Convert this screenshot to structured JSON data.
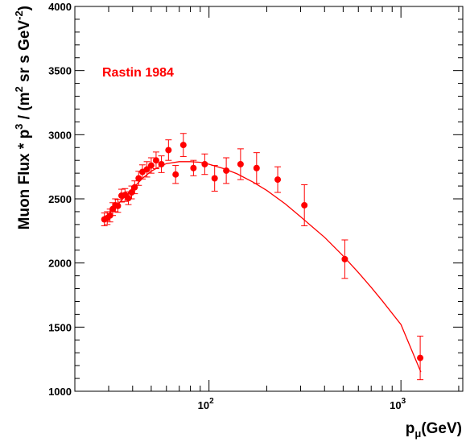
{
  "chart_data": {
    "type": "scatter",
    "title": "",
    "annotation": "Rastin 1984",
    "xlabel": {
      "base": "p",
      "sub": "μ",
      "rest": "(GeV)"
    },
    "ylabel": {
      "part1": "Muon Flux * p",
      "sup1": "3",
      "part2": " / (m",
      "sup2": "2",
      "part3": " sr s GeV",
      "sup3": "-2",
      "part4": ")"
    },
    "x_scale": "log",
    "xlim": [
      20,
      2100
    ],
    "ylim": [
      1000,
      4000
    ],
    "y_ticks": [
      1000,
      1500,
      2000,
      2500,
      3000,
      3500,
      4000
    ],
    "x_tick_labels": [
      {
        "value": 100,
        "base": "10",
        "exp": "2"
      },
      {
        "value": 1000,
        "base": "10",
        "exp": "3"
      }
    ],
    "colors": {
      "data": "#ff0000",
      "axes": "#000000"
    },
    "series": [
      {
        "name": "Rastin 1984",
        "kind": "points_with_errors",
        "points": [
          {
            "x": 28.5,
            "y": 2340,
            "err": 50
          },
          {
            "x": 29.5,
            "y": 2350,
            "err": 50
          },
          {
            "x": 30.5,
            "y": 2370,
            "err": 50
          },
          {
            "x": 31.5,
            "y": 2420,
            "err": 50
          },
          {
            "x": 32.5,
            "y": 2450,
            "err": 50
          },
          {
            "x": 33.5,
            "y": 2445,
            "err": 50
          },
          {
            "x": 35,
            "y": 2525,
            "err": 50
          },
          {
            "x": 36.5,
            "y": 2530,
            "err": 50
          },
          {
            "x": 38,
            "y": 2505,
            "err": 50
          },
          {
            "x": 39.5,
            "y": 2550,
            "err": 50
          },
          {
            "x": 41,
            "y": 2590,
            "err": 50
          },
          {
            "x": 43,
            "y": 2660,
            "err": 55
          },
          {
            "x": 45,
            "y": 2710,
            "err": 55
          },
          {
            "x": 47.5,
            "y": 2730,
            "err": 60
          },
          {
            "x": 50,
            "y": 2760,
            "err": 60
          },
          {
            "x": 53,
            "y": 2800,
            "err": 65
          },
          {
            "x": 56.5,
            "y": 2770,
            "err": 65
          },
          {
            "x": 61.5,
            "y": 2880,
            "err": 80
          },
          {
            "x": 67,
            "y": 2690,
            "err": 70
          },
          {
            "x": 73.5,
            "y": 2920,
            "err": 90
          },
          {
            "x": 83,
            "y": 2740,
            "err": 60
          },
          {
            "x": 95,
            "y": 2770,
            "err": 80
          },
          {
            "x": 107,
            "y": 2660,
            "err": 100
          },
          {
            "x": 123,
            "y": 2720,
            "err": 100
          },
          {
            "x": 146,
            "y": 2770,
            "err": 120
          },
          {
            "x": 177,
            "y": 2740,
            "err": 120
          },
          {
            "x": 228,
            "y": 2650,
            "err": 100
          },
          {
            "x": 314,
            "y": 2450,
            "err": 160
          },
          {
            "x": 510,
            "y": 2030,
            "err": 150
          },
          {
            "x": 1260,
            "y": 1260,
            "err": 170
          }
        ]
      },
      {
        "name": "fit",
        "kind": "line",
        "points": [
          {
            "x": 28,
            "y": 2320
          },
          {
            "x": 30,
            "y": 2380
          },
          {
            "x": 33,
            "y": 2445
          },
          {
            "x": 36,
            "y": 2510
          },
          {
            "x": 40,
            "y": 2580
          },
          {
            "x": 45,
            "y": 2660
          },
          {
            "x": 50,
            "y": 2715
          },
          {
            "x": 55,
            "y": 2750
          },
          {
            "x": 60,
            "y": 2775
          },
          {
            "x": 70,
            "y": 2790
          },
          {
            "x": 80,
            "y": 2790
          },
          {
            "x": 90,
            "y": 2785
          },
          {
            "x": 100,
            "y": 2770
          },
          {
            "x": 120,
            "y": 2735
          },
          {
            "x": 140,
            "y": 2695
          },
          {
            "x": 170,
            "y": 2630
          },
          {
            "x": 200,
            "y": 2565
          },
          {
            "x": 250,
            "y": 2460
          },
          {
            "x": 300,
            "y": 2360
          },
          {
            "x": 400,
            "y": 2200
          },
          {
            "x": 500,
            "y": 2055
          },
          {
            "x": 600,
            "y": 1925
          },
          {
            "x": 700,
            "y": 1810
          },
          {
            "x": 800,
            "y": 1705
          },
          {
            "x": 1000,
            "y": 1520
          },
          {
            "x": 1270,
            "y": 1150
          }
        ]
      }
    ]
  }
}
